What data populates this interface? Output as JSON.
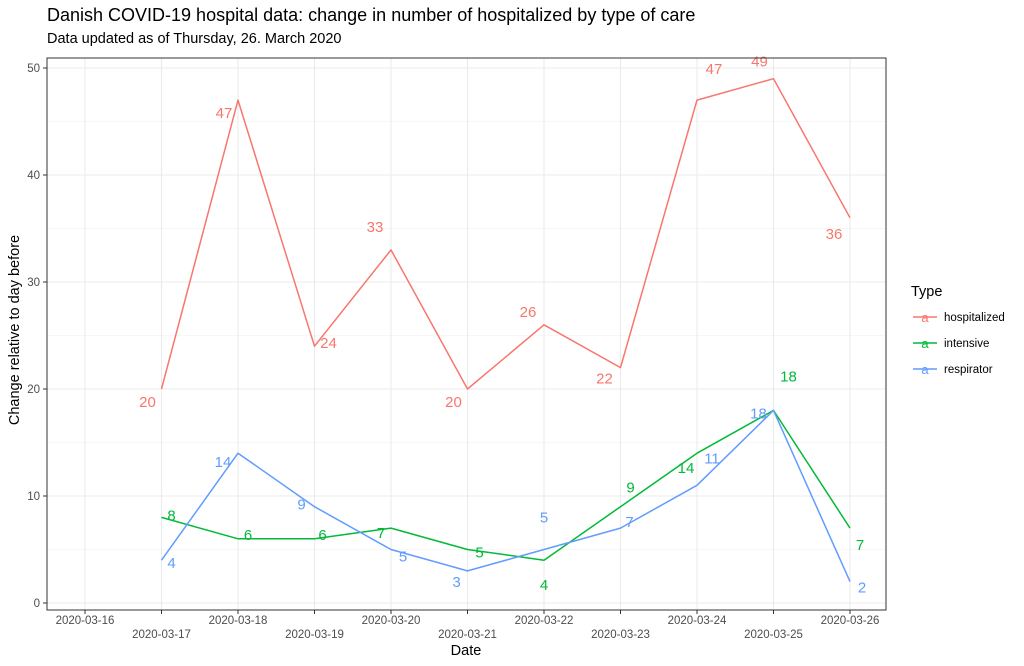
{
  "chart_data": {
    "type": "line",
    "title": "Danish COVID-19 hospital data: change in number of hospitalized by type of care",
    "subtitle": "Data updated as of Thursday, 26. March 2020",
    "xlabel": "Date",
    "ylabel": "Change relative to day before",
    "ylim": [
      0,
      50
    ],
    "yticks": [
      0,
      10,
      20,
      30,
      40,
      50
    ],
    "categories": [
      "2020-03-16",
      "2020-03-17",
      "2020-03-18",
      "2020-03-19",
      "2020-03-20",
      "2020-03-21",
      "2020-03-22",
      "2020-03-23",
      "2020-03-24",
      "2020-03-25",
      "2020-03-26"
    ],
    "legend_title": "Type",
    "legend_position": "right",
    "legend_key_glyph": "a",
    "grid": true,
    "series": [
      {
        "name": "hospitalized",
        "color": "#F8766D",
        "x": [
          "2020-03-17",
          "2020-03-18",
          "2020-03-19",
          "2020-03-20",
          "2020-03-21",
          "2020-03-22",
          "2020-03-23",
          "2020-03-24",
          "2020-03-25",
          "2020-03-26"
        ],
        "values": [
          20,
          47,
          24,
          33,
          20,
          26,
          22,
          47,
          49,
          36
        ]
      },
      {
        "name": "intensive",
        "color": "#00BA38",
        "x": [
          "2020-03-17",
          "2020-03-18",
          "2020-03-19",
          "2020-03-20",
          "2020-03-21",
          "2020-03-22",
          "2020-03-23",
          "2020-03-24",
          "2020-03-25",
          "2020-03-26"
        ],
        "values": [
          8,
          6,
          6,
          7,
          5,
          4,
          9,
          14,
          18,
          7
        ]
      },
      {
        "name": "respirator",
        "color": "#619CFF",
        "x": [
          "2020-03-17",
          "2020-03-18",
          "2020-03-19",
          "2020-03-20",
          "2020-03-21",
          "2020-03-22",
          "2020-03-23",
          "2020-03-24",
          "2020-03-25",
          "2020-03-26"
        ],
        "values": [
          4,
          14,
          9,
          5,
          3,
          5,
          7,
          11,
          18,
          2
        ]
      }
    ]
  }
}
